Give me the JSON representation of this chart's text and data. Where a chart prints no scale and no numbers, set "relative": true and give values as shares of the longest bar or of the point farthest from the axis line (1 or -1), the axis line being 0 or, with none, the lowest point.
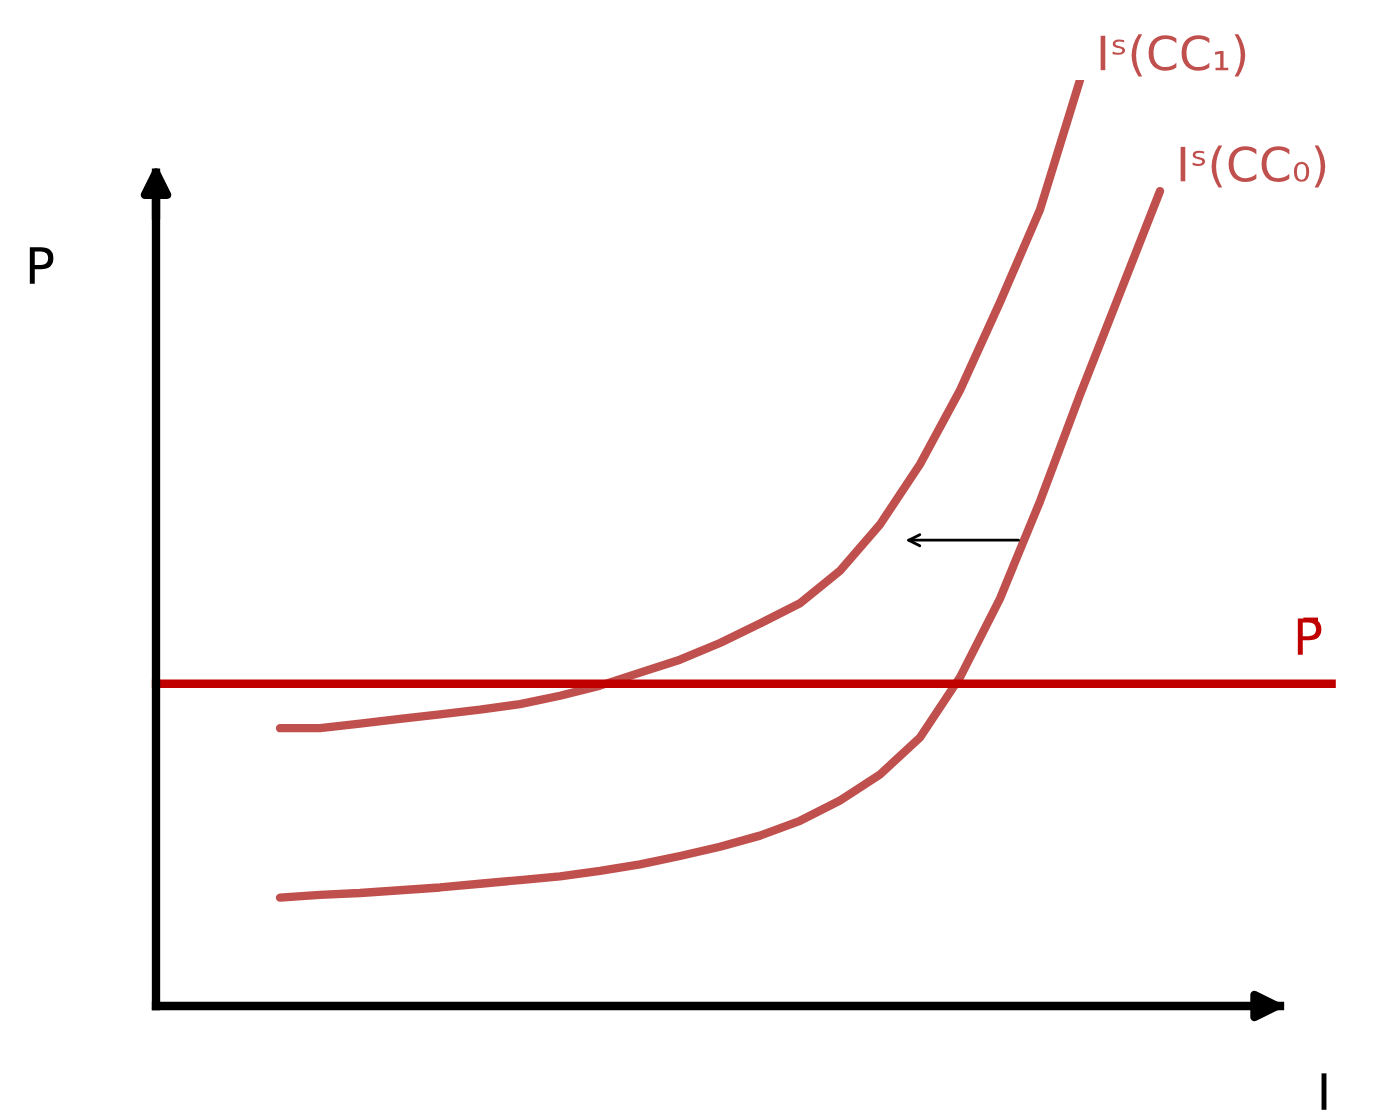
{
  "chart_data": {
    "type": "line",
    "relative": true,
    "xlabel": "I",
    "ylabel": "P",
    "legend": false,
    "marker": "none",
    "line_style": "solid",
    "categories": [
      null,
      null,
      null,
      null,
      null,
      null,
      null,
      null,
      null,
      null,
      null,
      null,
      null,
      null,
      null,
      null,
      null,
      null,
      null,
      null,
      null,
      null,
      null,
      null,
      null,
      null,
      null,
      null,
      null,
      null
    ],
    "series": [
      {
        "name": "Iˢ(CC₁)",
        "color": "#c0504d",
        "values": [
          null,
          null,
          null,
          0.3,
          0.3,
          0.305,
          0.31,
          0.315,
          0.32,
          0.326,
          0.335,
          0.346,
          0.36,
          0.374,
          0.392,
          0.413,
          0.435,
          0.47,
          0.52,
          0.585,
          0.665,
          0.76,
          0.86,
          1.0,
          null,
          null,
          null,
          null,
          null,
          null
        ]
      },
      {
        "name": "Iˢ(CC₀)",
        "color": "#c0504d",
        "values": [
          null,
          null,
          null,
          0.117,
          0.12,
          0.122,
          0.125,
          0.128,
          0.132,
          0.136,
          0.14,
          0.146,
          0.153,
          0.162,
          0.172,
          0.184,
          0.2,
          0.222,
          0.25,
          0.29,
          0.355,
          0.44,
          0.545,
          0.66,
          0.77,
          0.88,
          null,
          null,
          null,
          null
        ]
      }
    ],
    "ref_lines": [
      {
        "axis": "y",
        "value": 0.348,
        "label": "P̄",
        "color": "#c00000",
        "line_style": "solid"
      }
    ]
  }
}
